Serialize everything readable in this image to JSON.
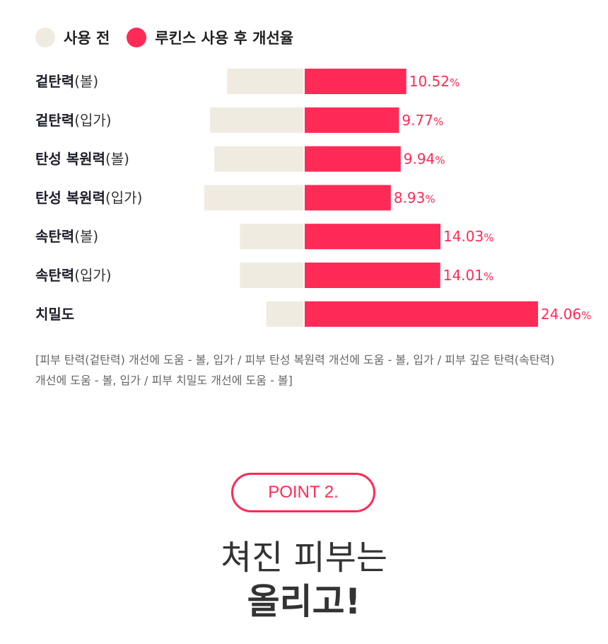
{
  "legend": {
    "before_label": "사용 전",
    "after_label": "루킨스 사용 후 개선율",
    "before_color": "#efebe1",
    "after_color": "#ff2a55"
  },
  "chart_data": {
    "type": "bar",
    "orientation": "horizontal-diverging",
    "categories": [
      {
        "name": "겉탄력",
        "sub": "(볼)"
      },
      {
        "name": "겉탄력",
        "sub": "(입가)"
      },
      {
        "name": "탄성 복원력",
        "sub": "(볼)"
      },
      {
        "name": "탄성 복원력",
        "sub": "(입가)"
      },
      {
        "name": "속탄력",
        "sub": "(볼)"
      },
      {
        "name": "속탄력",
        "sub": "(입가)"
      },
      {
        "name": "치밀도",
        "sub": ""
      }
    ],
    "series": [
      {
        "name": "사용 전",
        "values": [
          108,
          132,
          126,
          140,
          90,
          90,
          53
        ]
      },
      {
        "name": "루킨스 사용 후 개선율",
        "values": [
          10.52,
          9.77,
          9.94,
          8.93,
          14.03,
          14.01,
          24.06
        ]
      }
    ],
    "value_labels": [
      "10.52",
      "9.77",
      "9.94",
      "8.93",
      "14.03",
      "14.01",
      "24.06"
    ],
    "value_suffix": "%",
    "improvement_scale_max": 24.06,
    "before_scale_max": 140
  },
  "note": "[피부 탄력(겉탄력) 개선에 도움 - 볼, 입가 / 피부 탄성 복원력 개선에 도움 - 볼, 입가 / 피부 깊은 탄력(속탄력) 개선에 도움 - 볼, 입가 / 피부 치밀도 개선에 도움 - 볼]",
  "point": {
    "badge": "POINT 2.",
    "line1": "쳐진 피부는",
    "line2": "올리고!"
  }
}
